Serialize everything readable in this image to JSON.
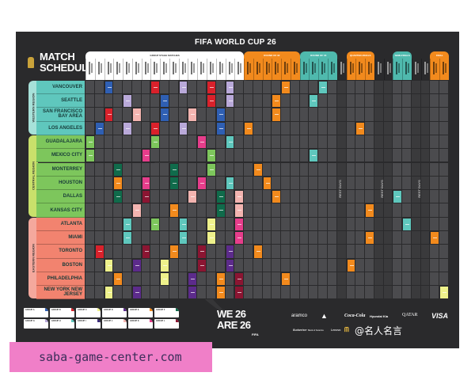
{
  "poster": {
    "title": "FIFA WORLD CUP 26",
    "logo_text": "26",
    "schedule_title": [
      "MATCH",
      "SCHEDULE"
    ]
  },
  "headers": {
    "group_stage": "GROUP STAGE MATCHES",
    "round_of_32": "ROUND OF 32",
    "round_of_16": "ROUND OF 16",
    "quarter_finals": "QUARTER-FINALS",
    "semi_finals": "SEMI-FINALS",
    "final": "FINAL",
    "rest_days": "REST DAYS"
  },
  "regions": [
    {
      "name": "WESTERN REGION",
      "color": "#a7e1d9",
      "city_color": "#5fc7bd"
    },
    {
      "name": "CENTRAL REGION",
      "color": "#c9e06b",
      "city_color": "#7dc65c"
    },
    {
      "name": "EASTERN REGION",
      "color": "#f4a89d",
      "city_color": "#f2836f"
    }
  ],
  "cities": [
    {
      "name": "VANCOUVER",
      "region": 0
    },
    {
      "name": "SEATTLE",
      "region": 0
    },
    {
      "name": "SAN FRANCISCO BAY AREA",
      "region": 0
    },
    {
      "name": "LOS ANGELES",
      "region": 0
    },
    {
      "name": "GUADALAJARA",
      "region": 1
    },
    {
      "name": "MEXICO CITY",
      "region": 1
    },
    {
      "name": "MONTERREY",
      "region": 1
    },
    {
      "name": "HOUSTON",
      "region": 1
    },
    {
      "name": "DALLAS",
      "region": 1
    },
    {
      "name": "KANSAS CITY",
      "region": 1
    },
    {
      "name": "ATLANTA",
      "region": 2
    },
    {
      "name": "MIAMI",
      "region": 2
    },
    {
      "name": "TORONTO",
      "region": 2
    },
    {
      "name": "BOSTON",
      "region": 2
    },
    {
      "name": "PHILADELPHIA",
      "region": 2
    },
    {
      "name": "NEW YORK NEW JERSEY",
      "region": 2
    }
  ],
  "match_colors": {
    "blue": "#2f5fb3",
    "red": "#d9212b",
    "lavender": "#b9a9d9",
    "pink": "#f3b4b0",
    "green": "#7dc65c",
    "magenta": "#e63d8b",
    "teal": "#5fc7bd",
    "darkgreen": "#106b4b",
    "orange": "#f28a1d",
    "maroon": "#8b1532",
    "yellow": "#eef18b",
    "purple": "#5c2b8b"
  },
  "header_colors": {
    "orange": "#f28a1d",
    "teal": "#4fb9ad",
    "white": "#ffffff"
  },
  "matches": [
    [
      0,
      2,
      "blue"
    ],
    [
      0,
      7,
      "red"
    ],
    [
      0,
      10,
      "lavender"
    ],
    [
      0,
      13,
      "red"
    ],
    [
      0,
      15,
      "lavender"
    ],
    [
      0,
      21,
      "orange"
    ],
    [
      0,
      25,
      "teal"
    ],
    [
      1,
      4,
      "lavender"
    ],
    [
      1,
      8,
      "blue"
    ],
    [
      1,
      13,
      "red"
    ],
    [
      1,
      15,
      "lavender"
    ],
    [
      1,
      20,
      "orange"
    ],
    [
      1,
      24,
      "teal"
    ],
    [
      2,
      2,
      "red"
    ],
    [
      2,
      5,
      "pink"
    ],
    [
      2,
      8,
      "blue"
    ],
    [
      2,
      11,
      "pink"
    ],
    [
      2,
      14,
      "blue"
    ],
    [
      2,
      20,
      "orange"
    ],
    [
      3,
      1,
      "blue"
    ],
    [
      3,
      4,
      "lavender"
    ],
    [
      3,
      7,
      "red"
    ],
    [
      3,
      10,
      "lavender"
    ],
    [
      3,
      14,
      "blue"
    ],
    [
      3,
      17,
      "orange"
    ],
    [
      3,
      29,
      "orange"
    ],
    [
      4,
      0,
      "green"
    ],
    [
      4,
      7,
      "green"
    ],
    [
      4,
      12,
      "magenta"
    ],
    [
      4,
      15,
      "teal"
    ],
    [
      5,
      0,
      "green"
    ],
    [
      5,
      6,
      "magenta"
    ],
    [
      5,
      13,
      "green"
    ],
    [
      5,
      24,
      "teal"
    ],
    [
      6,
      3,
      "darkgreen"
    ],
    [
      6,
      9,
      "darkgreen"
    ],
    [
      6,
      13,
      "green"
    ],
    [
      6,
      18,
      "orange"
    ],
    [
      7,
      3,
      "orange"
    ],
    [
      7,
      6,
      "magenta"
    ],
    [
      7,
      9,
      "darkgreen"
    ],
    [
      7,
      12,
      "magenta"
    ],
    [
      7,
      15,
      "teal"
    ],
    [
      7,
      19,
      "orange"
    ],
    [
      8,
      3,
      "darkgreen"
    ],
    [
      8,
      6,
      "maroon"
    ],
    [
      8,
      11,
      "pink"
    ],
    [
      8,
      14,
      "darkgreen"
    ],
    [
      8,
      16,
      "pink"
    ],
    [
      8,
      20,
      "orange"
    ],
    [
      8,
      33,
      "teal"
    ],
    [
      9,
      5,
      "pink"
    ],
    [
      9,
      9,
      "orange"
    ],
    [
      9,
      14,
      "darkgreen"
    ],
    [
      9,
      16,
      "pink"
    ],
    [
      9,
      30,
      "orange"
    ],
    [
      10,
      4,
      "teal"
    ],
    [
      10,
      7,
      "green"
    ],
    [
      10,
      10,
      "teal"
    ],
    [
      10,
      13,
      "yellow"
    ],
    [
      10,
      16,
      "magenta"
    ],
    [
      10,
      34,
      "teal"
    ],
    [
      11,
      4,
      "teal"
    ],
    [
      11,
      10,
      "teal"
    ],
    [
      11,
      13,
      "yellow"
    ],
    [
      11,
      16,
      "magenta"
    ],
    [
      11,
      30,
      "orange"
    ],
    [
      11,
      37,
      "orange"
    ],
    [
      12,
      1,
      "red"
    ],
    [
      12,
      6,
      "maroon"
    ],
    [
      12,
      9,
      "orange"
    ],
    [
      12,
      12,
      "maroon"
    ],
    [
      12,
      15,
      "purple"
    ],
    [
      12,
      18,
      "orange"
    ],
    [
      13,
      2,
      "yellow"
    ],
    [
      13,
      5,
      "purple"
    ],
    [
      13,
      8,
      "yellow"
    ],
    [
      13,
      12,
      "maroon"
    ],
    [
      13,
      15,
      "purple"
    ],
    [
      13,
      28,
      "orange"
    ],
    [
      14,
      3,
      "orange"
    ],
    [
      14,
      8,
      "yellow"
    ],
    [
      14,
      11,
      "purple"
    ],
    [
      14,
      14,
      "orange"
    ],
    [
      14,
      16,
      "maroon"
    ],
    [
      14,
      21,
      "orange"
    ],
    [
      15,
      2,
      "yellow"
    ],
    [
      15,
      5,
      "purple"
    ],
    [
      15,
      11,
      "purple"
    ],
    [
      15,
      14,
      "orange"
    ],
    [
      15,
      16,
      "maroon"
    ],
    [
      15,
      38,
      "yellow"
    ]
  ],
  "groups": [
    {
      "name": "GROUP A",
      "color": "#2f5fb3"
    },
    {
      "name": "GROUP B",
      "color": "#d9212b"
    },
    {
      "name": "GROUP C",
      "color": "#eef18b"
    },
    {
      "name": "GROUP D",
      "color": "#5c2b8b"
    },
    {
      "name": "GROUP E",
      "color": "#f28a1d"
    },
    {
      "name": "GROUP F",
      "color": "#106b4b"
    },
    {
      "name": "GROUP G",
      "color": "#b9a9d9"
    },
    {
      "name": "GROUP H",
      "color": "#5fc7bd"
    },
    {
      "name": "GROUP I",
      "color": "#3a2a7a"
    },
    {
      "name": "GROUP J",
      "color": "#f3b4b0"
    },
    {
      "name": "GROUP K",
      "color": "#e63d8b"
    },
    {
      "name": "GROUP L",
      "color": "#8b1532"
    }
  ],
  "brand": {
    "we_are": [
      "WE 26",
      "ARE 26"
    ],
    "fifa": "FIFA"
  },
  "sponsors": {
    "row1": [
      "aramco",
      "adidas",
      "Coca-Cola",
      "Hyundai Kia",
      "QATAR",
      "VISA"
    ],
    "row2": [
      "Budweiser",
      "Bank of America",
      "Lenovo",
      "M"
    ]
  },
  "watermark": {
    "weibo": "@名人名言",
    "site": "saba-game-center.com"
  }
}
